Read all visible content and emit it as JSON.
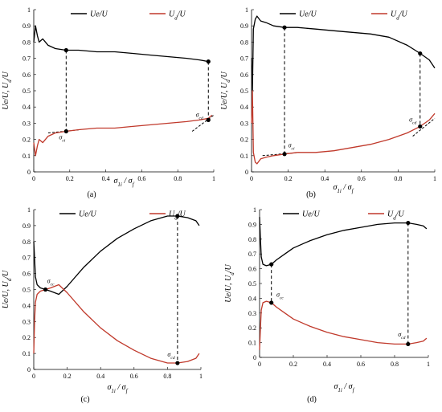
{
  "figure": {
    "colors": {
      "ue": "#000000",
      "ud": "#c0392b",
      "axis": "#000000"
    }
  },
  "chart_data": [
    {
      "type": "line",
      "panel_label": "(a)",
      "xlabel": "σ1i / σf",
      "ylabel": "Ue/U,  Ud/U",
      "xlim": [
        0,
        1
      ],
      "ylim": [
        0,
        1
      ],
      "xticks": [
        "0",
        "0.2",
        "0.4",
        "0.6",
        "0.8",
        "1"
      ],
      "yticks": [
        "0",
        "0.1",
        "0.2",
        "0.3",
        "0.4",
        "0.5",
        "0.6",
        "0.7",
        "0.8",
        "0.9",
        "1"
      ],
      "series": [
        {
          "name": "Ue/U",
          "color": "#000000",
          "x": [
            0.0,
            0.01,
            0.02,
            0.03,
            0.05,
            0.08,
            0.12,
            0.18,
            0.25,
            0.35,
            0.45,
            0.55,
            0.65,
            0.75,
            0.85,
            0.92,
            0.97
          ],
          "y": [
            0.8,
            0.9,
            0.84,
            0.8,
            0.82,
            0.78,
            0.76,
            0.75,
            0.75,
            0.74,
            0.74,
            0.73,
            0.72,
            0.71,
            0.7,
            0.69,
            0.68
          ]
        },
        {
          "name": "Ud/U",
          "color": "#c0392b",
          "x": [
            0.0,
            0.01,
            0.02,
            0.03,
            0.05,
            0.08,
            0.12,
            0.18,
            0.25,
            0.35,
            0.45,
            0.55,
            0.65,
            0.75,
            0.85,
            0.92,
            0.97,
            0.99
          ],
          "y": [
            0.18,
            0.1,
            0.16,
            0.2,
            0.18,
            0.22,
            0.24,
            0.25,
            0.26,
            0.27,
            0.27,
            0.28,
            0.29,
            0.3,
            0.31,
            0.32,
            0.33,
            0.35
          ]
        }
      ],
      "vlines": [
        0.18,
        0.97
      ],
      "markers": [
        {
          "x": 0.18,
          "y": 0.75
        },
        {
          "x": 0.18,
          "y": 0.25
        },
        {
          "x": 0.97,
          "y": 0.68
        },
        {
          "x": 0.97,
          "y": 0.32
        }
      ],
      "tangents": [
        {
          "x1": 0.08,
          "y1": 0.24,
          "x2": 0.26,
          "y2": 0.26
        },
        {
          "x1": 0.88,
          "y1": 0.25,
          "x2": 1.0,
          "y2": 0.35
        }
      ],
      "annotations": [
        {
          "text": "σci",
          "x": 0.14,
          "y": 0.2
        },
        {
          "text": "σcd",
          "x": 0.9,
          "y": 0.34
        }
      ]
    },
    {
      "type": "line",
      "panel_label": "(b)",
      "xlabel": "σ1i / σf",
      "ylabel": "Ue/U,  Ud/U",
      "xlim": [
        0,
        1
      ],
      "ylim": [
        0,
        1
      ],
      "xticks": [
        "0",
        "0.2",
        "0.4",
        "0.6",
        "0.8",
        "1"
      ],
      "yticks": [
        "0",
        "0.1",
        "0.2",
        "0.3",
        "0.4",
        "0.5",
        "0.6",
        "0.7",
        "0.8",
        "0.9",
        "1"
      ],
      "series": [
        {
          "name": "Ue/U",
          "color": "#000000",
          "x": [
            0.0,
            0.005,
            0.01,
            0.02,
            0.03,
            0.05,
            0.08,
            0.12,
            0.18,
            0.25,
            0.35,
            0.45,
            0.55,
            0.65,
            0.75,
            0.85,
            0.92,
            0.97,
            1.0
          ],
          "y": [
            0.7,
            0.5,
            0.88,
            0.94,
            0.96,
            0.93,
            0.92,
            0.9,
            0.89,
            0.89,
            0.88,
            0.87,
            0.86,
            0.85,
            0.83,
            0.78,
            0.73,
            0.69,
            0.64
          ]
        },
        {
          "name": "Ud/U",
          "color": "#c0392b",
          "x": [
            0.0,
            0.005,
            0.01,
            0.02,
            0.03,
            0.05,
            0.08,
            0.12,
            0.18,
            0.25,
            0.35,
            0.45,
            0.55,
            0.65,
            0.75,
            0.85,
            0.92,
            0.97,
            1.0
          ],
          "y": [
            0.3,
            0.5,
            0.12,
            0.06,
            0.05,
            0.08,
            0.09,
            0.1,
            0.11,
            0.12,
            0.12,
            0.13,
            0.15,
            0.17,
            0.2,
            0.24,
            0.28,
            0.32,
            0.36
          ]
        }
      ],
      "vlines": [
        0.18,
        0.92
      ],
      "markers": [
        {
          "x": 0.18,
          "y": 0.89
        },
        {
          "x": 0.18,
          "y": 0.11
        },
        {
          "x": 0.92,
          "y": 0.73
        },
        {
          "x": 0.92,
          "y": 0.28
        }
      ],
      "tangents": [
        {
          "x1": 0.06,
          "y1": 0.1,
          "x2": 0.26,
          "y2": 0.12
        },
        {
          "x1": 0.88,
          "y1": 0.22,
          "x2": 1.0,
          "y2": 0.33
        }
      ],
      "annotations": [
        {
          "text": "σci",
          "x": 0.2,
          "y": 0.15
        },
        {
          "text": "σcd",
          "x": 0.86,
          "y": 0.31
        }
      ]
    },
    {
      "type": "line",
      "panel_label": "(c)",
      "xlabel": "σ1i / σf",
      "ylabel": "Ue/U,  Ud/U",
      "xlim": [
        0,
        1
      ],
      "ylim": [
        0,
        1
      ],
      "xticks": [
        "0",
        "0.2",
        "0.4",
        "0.6",
        "0.8",
        "1"
      ],
      "yticks": [
        "0",
        "0.1",
        "0.2",
        "0.3",
        "0.4",
        "0.5",
        "0.6",
        "0.7",
        "0.8",
        "0.9",
        "1"
      ],
      "series": [
        {
          "name": "Ue/U",
          "color": "#000000",
          "x": [
            0.0,
            0.005,
            0.01,
            0.02,
            0.04,
            0.07,
            0.1,
            0.15,
            0.2,
            0.3,
            0.4,
            0.5,
            0.6,
            0.7,
            0.8,
            0.86,
            0.92,
            0.97,
            0.99
          ],
          "y": [
            0.8,
            0.7,
            0.58,
            0.53,
            0.51,
            0.5,
            0.49,
            0.47,
            0.52,
            0.64,
            0.74,
            0.82,
            0.88,
            0.93,
            0.96,
            0.96,
            0.95,
            0.93,
            0.9
          ]
        },
        {
          "name": "Ud/U",
          "color": "#c0392b",
          "x": [
            0.0,
            0.005,
            0.01,
            0.02,
            0.04,
            0.07,
            0.1,
            0.15,
            0.2,
            0.3,
            0.4,
            0.5,
            0.6,
            0.7,
            0.8,
            0.86,
            0.92,
            0.97,
            0.99
          ],
          "y": [
            0.1,
            0.3,
            0.42,
            0.47,
            0.49,
            0.5,
            0.51,
            0.53,
            0.48,
            0.36,
            0.26,
            0.18,
            0.12,
            0.07,
            0.04,
            0.04,
            0.05,
            0.07,
            0.1
          ]
        }
      ],
      "vlines": [
        0.86
      ],
      "markers": [
        {
          "x": 0.07,
          "y": 0.5
        },
        {
          "x": 0.86,
          "y": 0.96
        },
        {
          "x": 0.86,
          "y": 0.04
        }
      ],
      "tangents": [],
      "annotations": [
        {
          "text": "σcc",
          "x": 0.08,
          "y": 0.54
        },
        {
          "text": "σcd",
          "x": 0.8,
          "y": 0.08
        }
      ]
    },
    {
      "type": "line",
      "panel_label": "(d)",
      "xlabel": "σ1i / σf",
      "ylabel": "Ue/U,  Ud/U",
      "xlim": [
        0,
        1
      ],
      "ylim": [
        0,
        1
      ],
      "xticks": [
        "0",
        "0.2",
        "0.4",
        "0.6",
        "0.8",
        "1"
      ],
      "yticks": [
        "0",
        "0.1",
        "0.2",
        "0.3",
        "0.4",
        "0.5",
        "0.6",
        "0.7",
        "0.8",
        "0.9",
        "1"
      ],
      "series": [
        {
          "name": "Ue/U",
          "color": "#000000",
          "x": [
            0.0,
            0.005,
            0.01,
            0.02,
            0.04,
            0.07,
            0.1,
            0.15,
            0.2,
            0.3,
            0.4,
            0.5,
            0.6,
            0.7,
            0.8,
            0.88,
            0.93,
            0.97,
            0.99
          ],
          "y": [
            0.95,
            0.8,
            0.68,
            0.63,
            0.62,
            0.63,
            0.66,
            0.7,
            0.74,
            0.79,
            0.83,
            0.86,
            0.88,
            0.9,
            0.91,
            0.91,
            0.9,
            0.89,
            0.87
          ]
        },
        {
          "name": "Ud/U",
          "color": "#c0392b",
          "x": [
            0.0,
            0.005,
            0.01,
            0.02,
            0.04,
            0.07,
            0.1,
            0.15,
            0.2,
            0.3,
            0.4,
            0.5,
            0.6,
            0.7,
            0.8,
            0.88,
            0.93,
            0.97,
            0.99
          ],
          "y": [
            0.05,
            0.2,
            0.32,
            0.37,
            0.38,
            0.37,
            0.34,
            0.3,
            0.26,
            0.21,
            0.17,
            0.14,
            0.12,
            0.1,
            0.09,
            0.09,
            0.1,
            0.11,
            0.13
          ]
        }
      ],
      "vlines": [
        0.07,
        0.88
      ],
      "markers": [
        {
          "x": 0.07,
          "y": 0.63
        },
        {
          "x": 0.07,
          "y": 0.37
        },
        {
          "x": 0.88,
          "y": 0.91
        },
        {
          "x": 0.88,
          "y": 0.09
        }
      ],
      "tangents": [],
      "annotations": [
        {
          "text": "σcc",
          "x": 0.1,
          "y": 0.41
        },
        {
          "text": "σcd",
          "x": 0.82,
          "y": 0.14
        }
      ]
    }
  ]
}
